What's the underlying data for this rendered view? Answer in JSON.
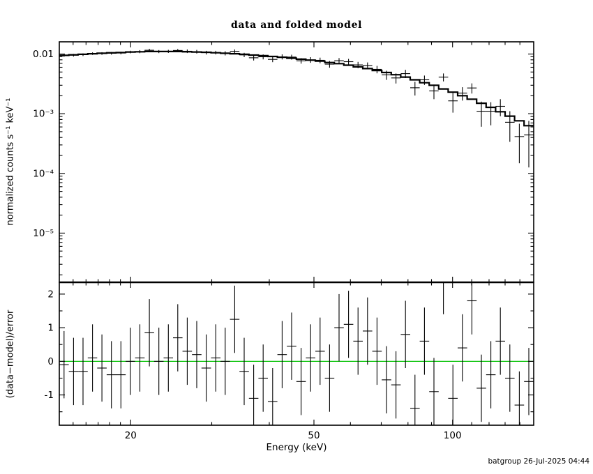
{
  "footer": {
    "timestamp": "batgroup 26-Jul-2025 04:44"
  },
  "chart_data": {
    "type": "line",
    "title": "data and folded model",
    "xlabel": "Energy (keV)",
    "xscale": "log",
    "xlim": [
      14,
      150
    ],
    "xticks": [
      20,
      50,
      100
    ],
    "xticks_minor": [
      15,
      16,
      17,
      18,
      19,
      30,
      40,
      60,
      70,
      80,
      90,
      110,
      120,
      130,
      140
    ],
    "bin_edges_kev": [
      14.0,
      14.68,
      15.39,
      16.14,
      16.92,
      17.74,
      18.6,
      19.51,
      20.45,
      21.45,
      22.49,
      23.58,
      24.72,
      25.92,
      27.18,
      28.5,
      29.89,
      31.34,
      32.86,
      34.45,
      36.13,
      37.88,
      39.72,
      41.65,
      43.67,
      45.79,
      48.02,
      50.35,
      52.79,
      55.36,
      58.05,
      60.87,
      63.82,
      66.92,
      70.17,
      73.58,
      77.15,
      80.9,
      84.83,
      88.95,
      93.27,
      97.8,
      102.55,
      107.53,
      112.76,
      118.24,
      123.98,
      130.0,
      136.32,
      142.94,
      149.88
    ],
    "panels": [
      {
        "name": "spectrum",
        "ylabel": "normalized counts s⁻¹ keV⁻¹",
        "yscale": "log",
        "ylim": [
          1.5e-06,
          0.016
        ],
        "yticks": [
          0.01,
          0.001,
          0.0001,
          1e-05
        ],
        "ytick_labels": [
          "0.01",
          "10⁻³",
          "10⁻⁴",
          "10⁻⁵"
        ],
        "rel_err": [
          0.05,
          0.05,
          0.05,
          0.05,
          0.05,
          0.05,
          0.05,
          0.05,
          0.06,
          0.06,
          0.06,
          0.06,
          0.06,
          0.07,
          0.07,
          0.07,
          0.07,
          0.08,
          0.08,
          0.08,
          0.09,
          0.09,
          0.09,
          0.1,
          0.1,
          0.1,
          0.11,
          0.11,
          0.12,
          0.12,
          0.13,
          0.13,
          0.14,
          0.15,
          0.16,
          0.17,
          0.18,
          0.19,
          0.2,
          0.22,
          0.24,
          0.26,
          0.28,
          0.3,
          0.33,
          0.36,
          0.39,
          0.42,
          0.35,
          0.5
        ],
        "series": [
          {
            "name": "data",
            "marker": "cross",
            "values": [
              0.00945,
              0.00956,
              0.00975,
              0.01015,
              0.0102,
              0.01029,
              0.01039,
              0.0108,
              0.01097,
              0.01156,
              0.011,
              0.01107,
              0.01146,
              0.01113,
              0.01095,
              0.01055,
              0.01057,
              0.0103,
              0.01111,
              0.00966,
              0.00865,
              0.00898,
              0.00812,
              0.00898,
              0.00888,
              0.00771,
              0.00799,
              0.00785,
              0.00677,
              0.00773,
              0.00743,
              0.00658,
              0.00642,
              0.00554,
              0.00447,
              0.00397,
              0.00469,
              0.00272,
              0.0037,
              0.00241,
              0.0041,
              0.00164,
              0.00222,
              0.0027,
              0.0011,
              0.0011,
              0.00133,
              0.00072,
              0.000414,
              0.000441
            ]
          },
          {
            "name": "folded model",
            "style": "step-line",
            "values": [
              0.0095,
              0.0097,
              0.0099,
              0.0101,
              0.0103,
              0.0105,
              0.0106,
              0.0108,
              0.0109,
              0.011,
              0.011,
              0.011,
              0.011,
              0.0109,
              0.0108,
              0.0107,
              0.0105,
              0.0103,
              0.0101,
              0.0099,
              0.0096,
              0.0094,
              0.0091,
              0.0088,
              0.0085,
              0.0082,
              0.0079,
              0.0076,
              0.0072,
              0.0069,
              0.0065,
              0.0061,
              0.0057,
              0.0053,
              0.0049,
              0.0045,
              0.0041,
              0.0037,
              0.0033,
              0.003,
              0.0026,
              0.0023,
              0.002,
              0.00175,
              0.0015,
              0.00128,
              0.00108,
              0.00091,
              0.00076,
              0.00063
            ]
          }
        ]
      },
      {
        "name": "residuals",
        "ylabel": "(data−model)/error",
        "yscale": "linear",
        "ylim": [
          -1.9,
          2.35
        ],
        "yticks": [
          -1,
          0,
          1,
          2
        ],
        "ytick_labels": [
          "-1",
          "0",
          "1",
          "2"
        ],
        "yticks_minor": [
          -1.5,
          -0.5,
          0.5,
          1.5
        ],
        "error_bar": 1,
        "zero_line_color": "#00c000",
        "values": [
          -0.1,
          -0.3,
          -0.3,
          0.1,
          -0.2,
          -0.4,
          -0.4,
          0.0,
          0.1,
          0.85,
          0.0,
          0.1,
          0.7,
          0.3,
          0.2,
          -0.2,
          0.1,
          0.0,
          1.25,
          -0.3,
          -1.1,
          -0.5,
          -1.2,
          0.2,
          0.45,
          -0.6,
          0.1,
          0.3,
          -0.5,
          1.0,
          1.1,
          0.6,
          0.9,
          0.3,
          -0.55,
          -0.7,
          0.8,
          -1.4,
          0.6,
          -0.9,
          2.4,
          -1.1,
          0.4,
          1.8,
          -0.8,
          -0.4,
          0.6,
          -0.5,
          -1.3,
          -0.6
        ]
      }
    ]
  }
}
